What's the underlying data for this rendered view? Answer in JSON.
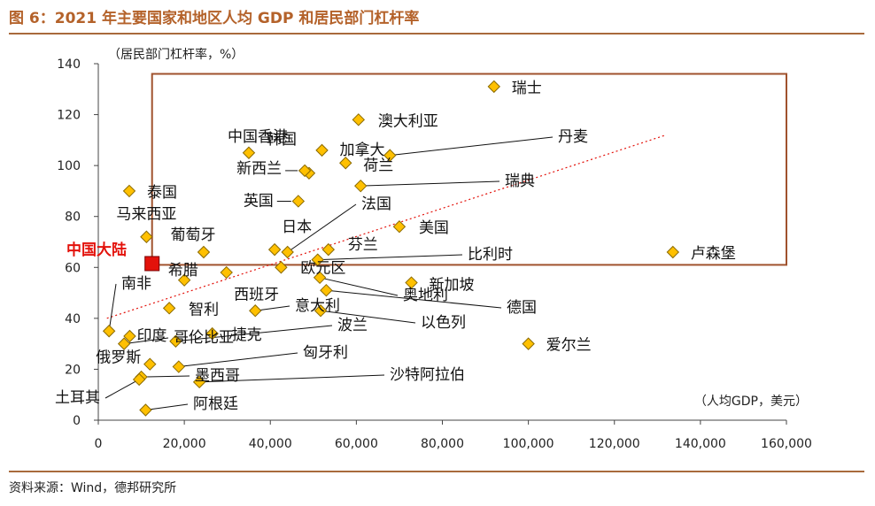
{
  "figure": {
    "title": "图 6：2021 年主要国家和地区人均 GDP 和居民部门杠杆率",
    "source": "资料来源：Wind，德邦研究所"
  },
  "colors": {
    "accent": "#b4622a",
    "marker_fill": "#ffc000",
    "marker_stroke": "#8a6a00",
    "highlight": "#e3120b",
    "box": "#a0522d",
    "trend": "#e3120b"
  },
  "chart_data": {
    "type": "scatter",
    "title": "2021 年主要国家和地区人均 GDP 和居民部门杠杆率",
    "xlabel": "（人均GDP，美元）",
    "ylabel": "（居民部门杠杆率，%）",
    "xlim": [
      0,
      160000
    ],
    "ylim": [
      0,
      140
    ],
    "xticks": [
      0,
      20000,
      40000,
      60000,
      80000,
      100000,
      120000,
      140000,
      160000
    ],
    "xtick_labels": [
      "0",
      "20,000",
      "40,000",
      "60,000",
      "80,000",
      "100,000",
      "120,000",
      "140,000",
      "160,000"
    ],
    "yticks": [
      0,
      20,
      40,
      60,
      80,
      100,
      120,
      140
    ],
    "ytick_labels": [
      "0",
      "20",
      "40",
      "60",
      "80",
      "100",
      "120",
      "140"
    ],
    "grid": false,
    "reference_box": {
      "x": [
        12500,
        160000
      ],
      "y": [
        61,
        136
      ]
    },
    "trendline": {
      "style": "dotted",
      "from": [
        2000,
        40
      ],
      "to": [
        132000,
        112
      ]
    },
    "highlight": {
      "name": "中国大陆",
      "x": 12500,
      "y": 61.5
    },
    "points": [
      {
        "name": "瑞士",
        "x": 92000,
        "y": 131
      },
      {
        "name": "中国香港",
        "x": 49000,
        "y": 97
      },
      {
        "name": "澳大利亚",
        "x": 60500,
        "y": 118
      },
      {
        "name": "丹麦",
        "x": 67800,
        "y": 104
      },
      {
        "name": "韩国",
        "x": 35000,
        "y": 105
      },
      {
        "name": "加拿大",
        "x": 52000,
        "y": 106
      },
      {
        "name": "荷兰",
        "x": 57500,
        "y": 101
      },
      {
        "name": "新西兰",
        "x": 48000,
        "y": 98
      },
      {
        "name": "瑞典",
        "x": 61000,
        "y": 92
      },
      {
        "name": "泰国",
        "x": 7200,
        "y": 90
      },
      {
        "name": "英国",
        "x": 46500,
        "y": 86
      },
      {
        "name": "法国",
        "x": 44000,
        "y": 66
      },
      {
        "name": "日本",
        "x": 41000,
        "y": 67
      },
      {
        "name": "美国",
        "x": 70000,
        "y": 76
      },
      {
        "name": "马来西亚",
        "x": 11200,
        "y": 72
      },
      {
        "name": "葡萄牙",
        "x": 24500,
        "y": 66
      },
      {
        "name": "芬兰",
        "x": 53500,
        "y": 67
      },
      {
        "name": "比利时",
        "x": 51000,
        "y": 63
      },
      {
        "name": "卢森堡",
        "x": 133600,
        "y": 66
      },
      {
        "name": "希腊",
        "x": 29800,
        "y": 58
      },
      {
        "name": "欧元区",
        "x": 42500,
        "y": 60
      },
      {
        "name": "新加坡",
        "x": 72800,
        "y": 54
      },
      {
        "name": "西班牙",
        "x": 20000,
        "y": 55
      },
      {
        "name": "奥地利",
        "x": 51500,
        "y": 56
      },
      {
        "name": "德国",
        "x": 53000,
        "y": 51
      },
      {
        "name": "南非",
        "x": 2500,
        "y": 35
      },
      {
        "name": "智利",
        "x": 16500,
        "y": 44
      },
      {
        "name": "意大利",
        "x": 36500,
        "y": 43
      },
      {
        "name": "以色列",
        "x": 51700,
        "y": 43
      },
      {
        "name": "印度",
        "x": 7300,
        "y": 33
      },
      {
        "name": "哥伦比亚",
        "x": 6000,
        "y": 30
      },
      {
        "name": "捷克",
        "x": 26500,
        "y": 34
      },
      {
        "name": "波兰",
        "x": 18000,
        "y": 31
      },
      {
        "name": "爱尔兰",
        "x": 100000,
        "y": 30
      },
      {
        "name": "俄罗斯",
        "x": 12000,
        "y": 22
      },
      {
        "name": "匈牙利",
        "x": 18700,
        "y": 21
      },
      {
        "name": "墨西哥",
        "x": 10000,
        "y": 17
      },
      {
        "name": "沙特阿拉伯",
        "x": 23500,
        "y": 15
      },
      {
        "name": "土耳其",
        "x": 9500,
        "y": 16
      },
      {
        "name": "阿根廷",
        "x": 11000,
        "y": 4
      }
    ]
  }
}
